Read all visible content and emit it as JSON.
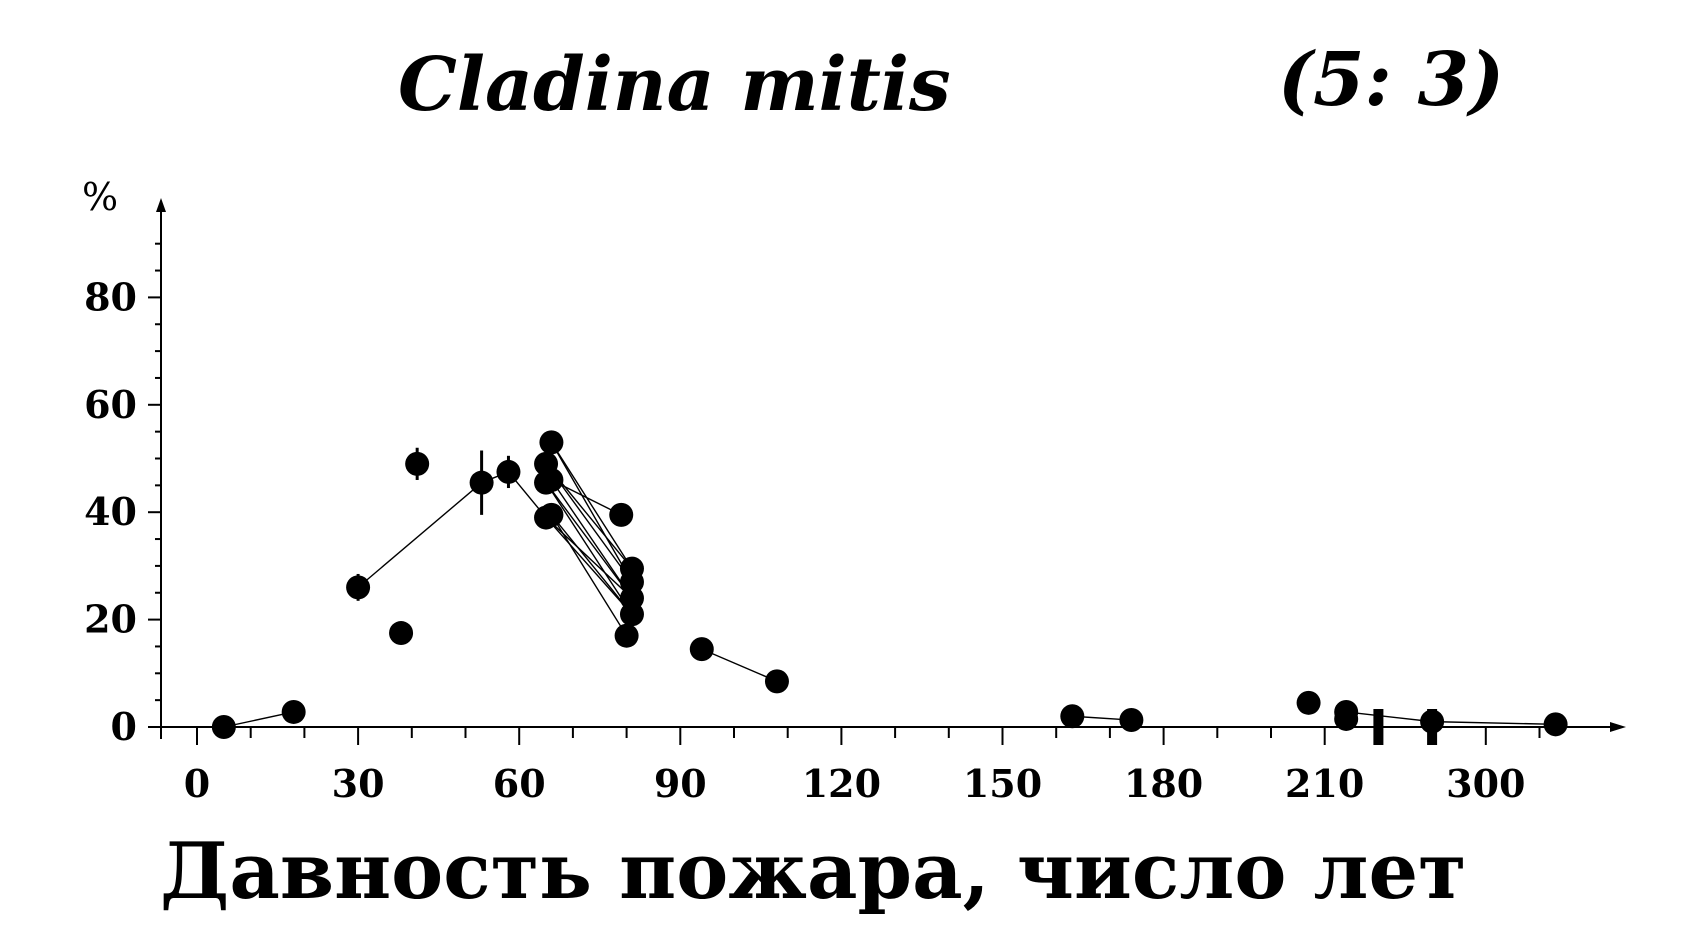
{
  "chart_data": {
    "type": "scatter",
    "title": "Cladina mitis",
    "subtitle": "(5: 3)",
    "xlabel": "Давность пожара, число лет",
    "ylabel": "%",
    "x_ticks": [
      "0",
      "30",
      "60",
      "90",
      "120",
      "150",
      "180",
      "210",
      "300"
    ],
    "y_ticks": [
      "0",
      "20",
      "40",
      "60",
      "80"
    ],
    "ylim": [
      0,
      95
    ],
    "xlim": [
      0,
      268
    ],
    "grid": false,
    "points": [
      {
        "x": 5,
        "y": 0
      },
      {
        "x": 18,
        "y": 2.8
      },
      {
        "x": 30,
        "y": 26,
        "err": 2.5
      },
      {
        "x": 38,
        "y": 17.5
      },
      {
        "x": 41,
        "y": 49,
        "err": 3
      },
      {
        "x": 53,
        "y": 45.5,
        "err": 6
      },
      {
        "x": 58,
        "y": 47.5,
        "err": 3
      },
      {
        "x": 65,
        "y": 49
      },
      {
        "x": 65,
        "y": 45.5
      },
      {
        "x": 65,
        "y": 39
      },
      {
        "x": 66,
        "y": 53
      },
      {
        "x": 66,
        "y": 46
      },
      {
        "x": 66,
        "y": 39.5
      },
      {
        "x": 79,
        "y": 39.5,
        "err": 2
      },
      {
        "x": 80,
        "y": 17
      },
      {
        "x": 81,
        "y": 29.5
      },
      {
        "x": 81,
        "y": 27
      },
      {
        "x": 81,
        "y": 24
      },
      {
        "x": 81,
        "y": 21
      },
      {
        "x": 94,
        "y": 14.5
      },
      {
        "x": 108,
        "y": 8.5
      },
      {
        "x": 163,
        "y": 2
      },
      {
        "x": 174,
        "y": 1.3
      },
      {
        "x": 207,
        "y": 4.5
      },
      {
        "x": 214,
        "y": 2.8
      },
      {
        "x": 214,
        "y": 1.5
      },
      {
        "x": 230,
        "y": 1
      },
      {
        "x": 253,
        "y": 0.5
      }
    ],
    "connections": [
      [
        0,
        1
      ],
      [
        2,
        5
      ],
      [
        5,
        6
      ],
      [
        6,
        9
      ],
      [
        19,
        20
      ],
      [
        21,
        22
      ],
      [
        24,
        26
      ],
      [
        26,
        27
      ],
      [
        7,
        15
      ],
      [
        7,
        16
      ],
      [
        8,
        17
      ],
      [
        8,
        18
      ],
      [
        9,
        17
      ],
      [
        9,
        18
      ],
      [
        10,
        15
      ],
      [
        10,
        16
      ],
      [
        11,
        13
      ],
      [
        11,
        17
      ],
      [
        12,
        14
      ],
      [
        12,
        18
      ]
    ],
    "axis_break_x": [
      220,
      230
    ]
  }
}
